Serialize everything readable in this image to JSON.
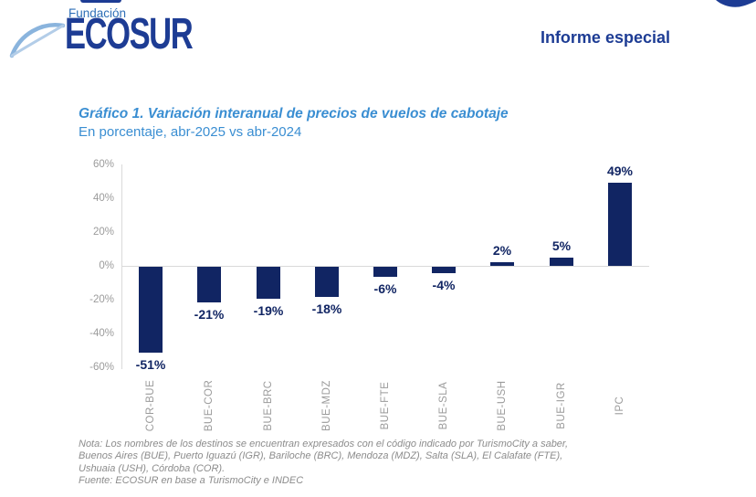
{
  "header": {
    "brand_top": "Fundación",
    "brand_name": "ECOSUR",
    "report_label": "Informe especial"
  },
  "chart": {
    "title": "Gráfico 1. Variación interanual de precios de vuelos de cabotaje",
    "subtitle": "En porcentaje, abr-2025 vs abr-2024"
  },
  "chart_data": {
    "type": "bar",
    "title": "Gráfico 1. Variación interanual de precios de vuelos de cabotaje",
    "subtitle": "En porcentaje, abr-2025 vs abr-2024",
    "categories": [
      "COR-BUE",
      "BUE-COR",
      "BUE-BRC",
      "BUE-MDZ",
      "BUE-FTE",
      "BUE-SLA",
      "BUE-USH",
      "BUE-IGR",
      "IPC"
    ],
    "values": [
      -51,
      -21,
      -19,
      -18,
      -6,
      -4,
      2,
      5,
      49
    ],
    "data_labels": [
      "-51%",
      "-21%",
      "-19%",
      "-18%",
      "-6%",
      "-4%",
      "2%",
      "5%",
      "49%"
    ],
    "ylabel": "",
    "xlabel": "",
    "ylim": [
      -60,
      60
    ],
    "ytick_step": 20,
    "ytick_labels": [
      "60%",
      "40%",
      "20%",
      "0%",
      "-20%",
      "-40%",
      "-60%"
    ],
    "grid": "zero-line-only",
    "legend": "none"
  },
  "colors": {
    "bar": "#112563",
    "value_label": "#112563",
    "brand_navy": "#1d3c94",
    "title_blue": "#3a8ed2",
    "brand_top_blue": "#2e6fb7",
    "axis_gray": "#d9d9d9",
    "tick_gray": "#9b9b9b",
    "footnote_gray": "#8c8c8c",
    "swoosh_light": "#8ab4dd",
    "swoosh_lighter": "#b3cde8"
  },
  "footnote": {
    "lines": [
      "Nota: Los nombres de los destinos se encuentran expresados con el código indicado por TurismoCity a saber,",
      "Buenos Aires (BUE), Puerto Iguazú (IGR), Bariloche (BRC), Mendoza (MDZ), Salta (SLA), El Calafate (FTE),",
      "Ushuaia (USH), Córdoba (COR)."
    ],
    "source": "Fuente: ECOSUR en base a TurismoCity e INDEC"
  }
}
